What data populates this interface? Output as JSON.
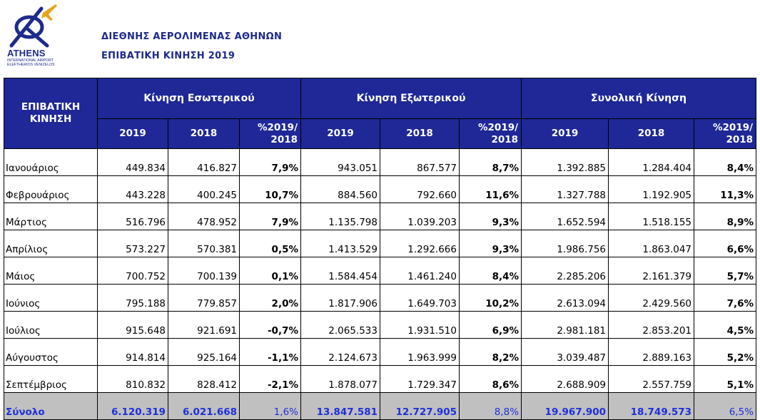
{
  "logo": {
    "name": "ATHENS",
    "line1": "INTERNATIONAL AIRPORT",
    "line2": "ELEFTHERIOS VENIZELOS"
  },
  "header": {
    "title": "ΔΙΕΘΝΗΣ ΑΕΡΟΛΙΜΕΝΑΣ ΑΘΗΝΩΝ",
    "subtitle": "ΕΠΙΒΑΤΙΚΗ ΚΙΝΗΣΗ 2019"
  },
  "table": {
    "corner": "ΕΠΙΒΑΤΙΚΗ ΚΙΝΗΣΗ",
    "groups": [
      "Κίνηση Εσωτερικού",
      "Κίνηση Εξωτερικού",
      "Συνολική Κίνηση"
    ],
    "subheaders": [
      "2019",
      "2018",
      "%2019/ 2018",
      "2019",
      "2018",
      "%2019/ 2018",
      "2019",
      "2018",
      "%2019/ 2018"
    ],
    "rows": [
      {
        "month": "Ιανουάριος",
        "d19": "449.834",
        "d18": "416.827",
        "dp": "7,9%",
        "i19": "943.051",
        "i18": "867.577",
        "ip": "8,7%",
        "t19": "1.392.885",
        "t18": "1.284.404",
        "tp": "8,4%"
      },
      {
        "month": "Φεβρουάριος",
        "d19": "443.228",
        "d18": "400.245",
        "dp": "10,7%",
        "i19": "884.560",
        "i18": "792.660",
        "ip": "11,6%",
        "t19": "1.327.788",
        "t18": "1.192.905",
        "tp": "11,3%"
      },
      {
        "month": "Μάρτιος",
        "d19": "516.796",
        "d18": "478.952",
        "dp": "7,9%",
        "i19": "1.135.798",
        "i18": "1.039.203",
        "ip": "9,3%",
        "t19": "1.652.594",
        "t18": "1.518.155",
        "tp": "8,9%"
      },
      {
        "month": "Απρίλιος",
        "d19": "573.227",
        "d18": "570.381",
        "dp": "0,5%",
        "i19": "1.413.529",
        "i18": "1.292.666",
        "ip": "9,3%",
        "t19": "1.986.756",
        "t18": "1.863.047",
        "tp": "6,6%"
      },
      {
        "month": "Μάιος",
        "d19": "700.752",
        "d18": "700.139",
        "dp": "0,1%",
        "i19": "1.584.454",
        "i18": "1.461.240",
        "ip": "8,4%",
        "t19": "2.285.206",
        "t18": "2.161.379",
        "tp": "5,7%"
      },
      {
        "month": "Ιούνιος",
        "d19": "795.188",
        "d18": "779.857",
        "dp": "2,0%",
        "i19": "1.817.906",
        "i18": "1.649.703",
        "ip": "10,2%",
        "t19": "2.613.094",
        "t18": "2.429.560",
        "tp": "7,6%"
      },
      {
        "month": "Ιούλιος",
        "d19": "915.648",
        "d18": "921.691",
        "dp": "-0,7%",
        "i19": "2.065.533",
        "i18": "1.931.510",
        "ip": "6,9%",
        "t19": "2.981.181",
        "t18": "2.853.201",
        "tp": "4,5%"
      },
      {
        "month": "Αύγουστος",
        "d19": "914.814",
        "d18": "925.164",
        "dp": "-1,1%",
        "i19": "2.124.673",
        "i18": "1.963.999",
        "ip": "8,2%",
        "t19": "3.039.487",
        "t18": "2.889.163",
        "tp": "5,2%"
      },
      {
        "month": "Σεπτέμβριος",
        "d19": "810.832",
        "d18": "828.412",
        "dp": "-2,1%",
        "i19": "1.878.077",
        "i18": "1.729.347",
        "ip": "8,6%",
        "t19": "2.688.909",
        "t18": "2.557.759",
        "tp": "5,1%"
      }
    ],
    "total": {
      "month": "Σύνολο",
      "d19": "6.120.319",
      "d18": "6.021.668",
      "dp": "1,6%",
      "i19": "13.847.581",
      "i18": "12.727.905",
      "ip": "8,8%",
      "t19": "19.967.900",
      "t18": "18.749.573",
      "tp": "6,5%"
    }
  },
  "colors": {
    "header_bg": "#1f2896",
    "brand_blue": "#1d2a8c",
    "total_bg": "#c0c0c0",
    "total_text": "#1f2fd9"
  }
}
